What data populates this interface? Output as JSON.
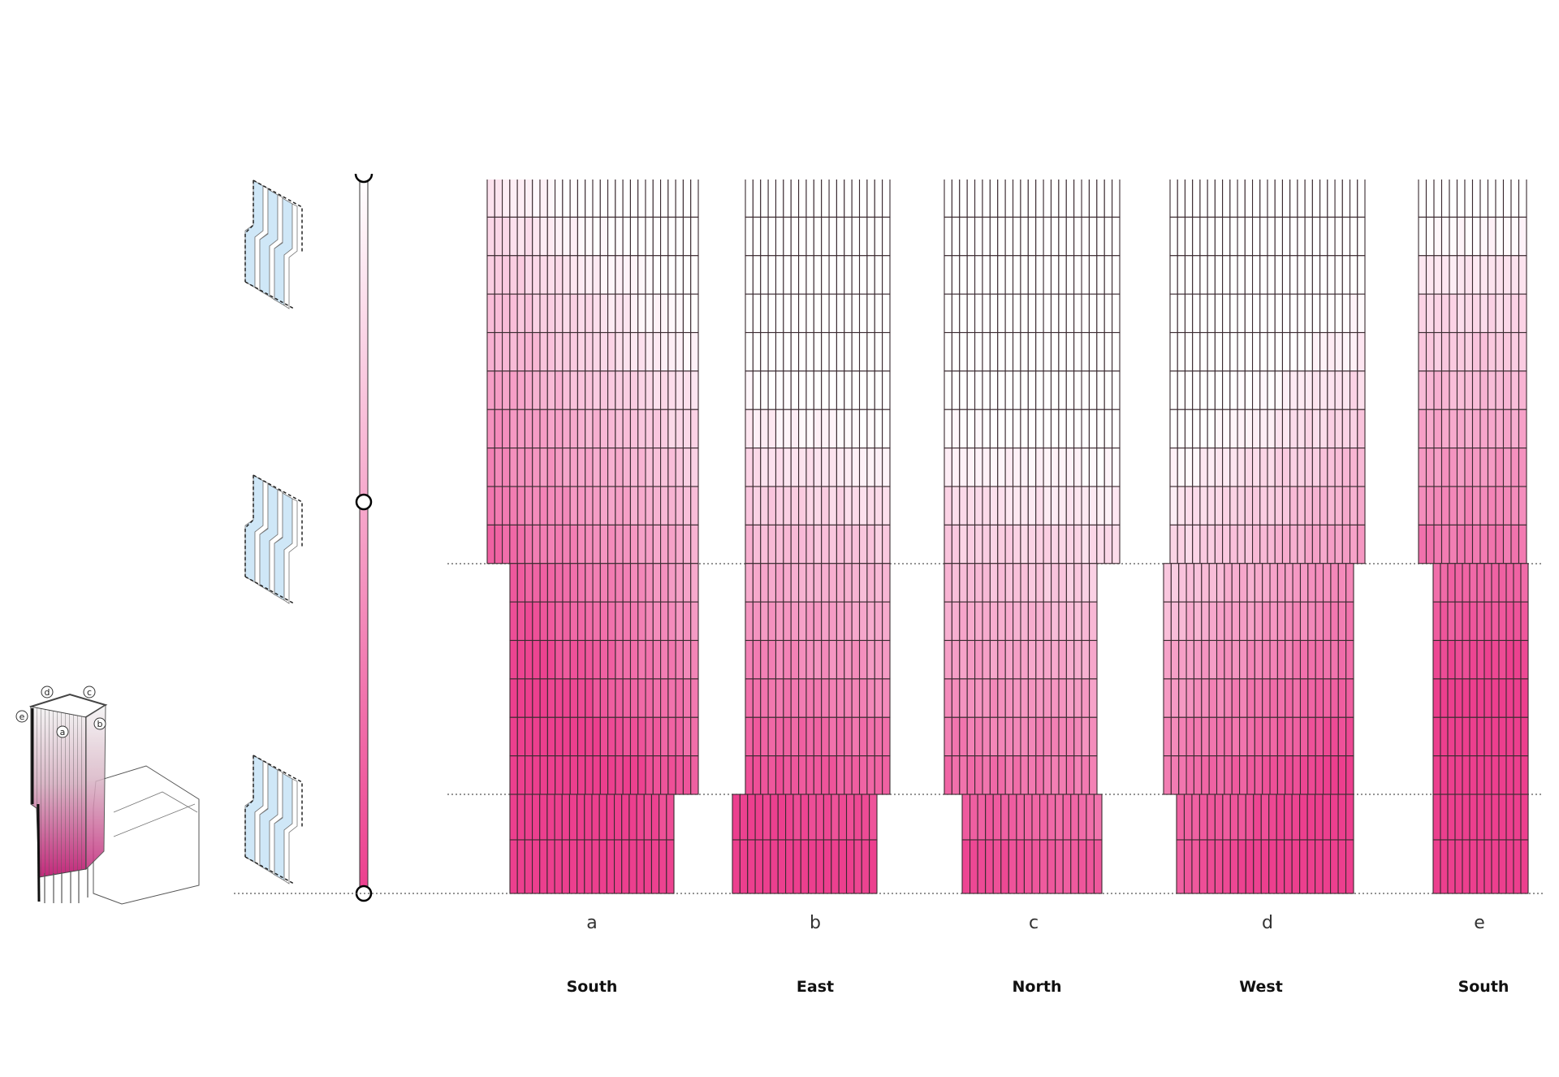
{
  "colors": {
    "accent": "#ec3f8e",
    "tile_border": "#3a2a30",
    "panel_glass": "#cfe7f7",
    "dotted": "#555555"
  },
  "building_tags": [
    "a",
    "b",
    "c",
    "d",
    "e"
  ],
  "facades": [
    {
      "id": "a",
      "letter": "a",
      "orientation": "South"
    },
    {
      "id": "b",
      "letter": "b",
      "orientation": "East"
    },
    {
      "id": "c",
      "letter": "c",
      "orientation": "North"
    },
    {
      "id": "d",
      "letter": "d",
      "orientation": "West"
    },
    {
      "id": "e",
      "letter": "e",
      "orientation": "South"
    }
  ],
  "gradient_scale": {
    "stops": 3,
    "from": "#ffffff",
    "to": "#ec3f8e"
  }
}
